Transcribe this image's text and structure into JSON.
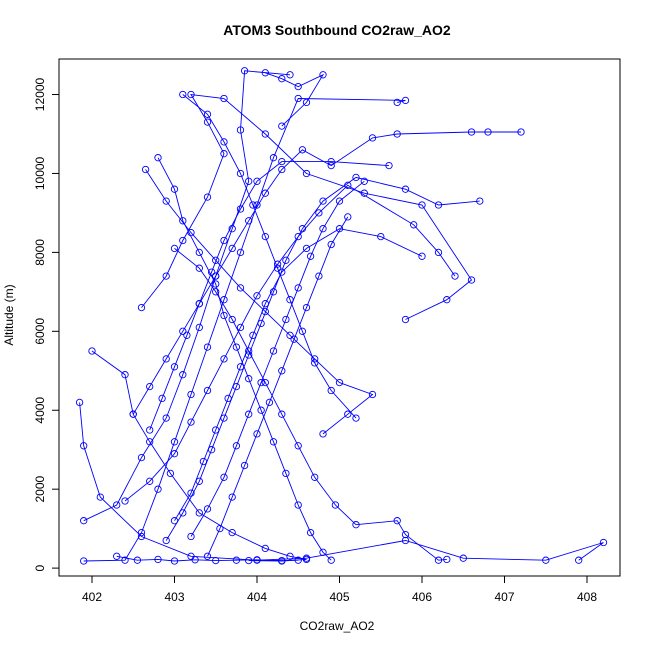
{
  "chart_data": {
    "type": "line",
    "title": "ATOM3 Southbound CO2raw_AO2",
    "xlabel": "CO2raw_AO2",
    "ylabel": "Altitude (m)",
    "xlim": [
      401.6,
      408.4
    ],
    "ylim": [
      -200,
      12900
    ],
    "x_ticks": [
      "402",
      "403",
      "404",
      "405",
      "406",
      "407",
      "408"
    ],
    "y_ticks": [
      "0",
      "2000",
      "4000",
      "6000",
      "8000",
      "10000",
      "12000"
    ],
    "grid": false,
    "legend": "none",
    "series_color": "#0000ff",
    "marker": "open-circle",
    "series": [
      {
        "values": [
          [
            401.9,
            180
          ],
          [
            402.4,
            200
          ],
          [
            402.6,
            900
          ],
          [
            402.8,
            2000
          ],
          [
            403.0,
            3200
          ],
          [
            403.2,
            4400
          ],
          [
            403.4,
            5600
          ],
          [
            403.6,
            6800
          ],
          [
            403.8,
            8000
          ],
          [
            404.0,
            9200
          ],
          [
            404.2,
            10400
          ],
          [
            404.5,
            11900
          ],
          [
            405.8,
            11850
          ],
          [
            405.7,
            11800
          ]
        ]
      },
      {
        "values": [
          [
            401.9,
            1200
          ],
          [
            402.3,
            1600
          ],
          [
            402.6,
            2800
          ],
          [
            402.9,
            3800
          ],
          [
            403.1,
            4900
          ],
          [
            403.3,
            6100
          ],
          [
            403.5,
            7400
          ],
          [
            403.7,
            8600
          ],
          [
            403.9,
            9800
          ],
          [
            403.8,
            11100
          ],
          [
            403.85,
            12600
          ],
          [
            404.4,
            12500
          ]
        ]
      },
      {
        "values": [
          [
            401.85,
            4200
          ],
          [
            401.9,
            3100
          ],
          [
            402.1,
            1800
          ],
          [
            402.6,
            800
          ],
          [
            403.2,
            300
          ],
          [
            404.0,
            200
          ],
          [
            404.6,
            250
          ],
          [
            405.8,
            700
          ],
          [
            406.5,
            250
          ],
          [
            407.5,
            200
          ],
          [
            408.2,
            650
          ],
          [
            407.9,
            200
          ]
        ]
      },
      {
        "values": [
          [
            402.0,
            5500
          ],
          [
            402.4,
            4900
          ],
          [
            402.5,
            3900
          ],
          [
            402.7,
            3200
          ],
          [
            402.95,
            2400
          ],
          [
            403.3,
            1400
          ],
          [
            403.7,
            900
          ],
          [
            404.1,
            500
          ],
          [
            404.4,
            300
          ],
          [
            404.6,
            220
          ],
          [
            404.3,
            180
          ],
          [
            403.9,
            190
          ]
        ]
      },
      {
        "values": [
          [
            402.6,
            6600
          ],
          [
            402.9,
            7400
          ],
          [
            403.1,
            8300
          ],
          [
            403.4,
            9400
          ],
          [
            403.6,
            10500
          ],
          [
            403.4,
            11300
          ],
          [
            403.2,
            12000
          ],
          [
            403.6,
            11900
          ],
          [
            404.1,
            11000
          ],
          [
            404.6,
            10000
          ],
          [
            405.3,
            9500
          ],
          [
            406.0,
            9200
          ],
          [
            406.6,
            7300
          ],
          [
            406.3,
            6800
          ],
          [
            405.8,
            6300
          ]
        ]
      },
      {
        "values": [
          [
            402.8,
            10400
          ],
          [
            403.0,
            9600
          ],
          [
            403.1,
            8800
          ],
          [
            403.3,
            8000
          ],
          [
            403.5,
            7200
          ],
          [
            403.6,
            6400
          ],
          [
            403.75,
            5600
          ],
          [
            403.9,
            4800
          ],
          [
            404.05,
            4000
          ],
          [
            404.2,
            3200
          ],
          [
            404.35,
            2400
          ],
          [
            404.5,
            1600
          ],
          [
            404.65,
            900
          ],
          [
            404.8,
            400
          ],
          [
            404.9,
            200
          ]
        ]
      },
      {
        "values": [
          [
            402.65,
            10100
          ],
          [
            402.9,
            9300
          ],
          [
            403.2,
            8500
          ],
          [
            403.5,
            7800
          ],
          [
            403.8,
            7100
          ],
          [
            404.1,
            6500
          ],
          [
            404.4,
            5900
          ],
          [
            404.7,
            5300
          ],
          [
            405.0,
            4700
          ],
          [
            405.4,
            4400
          ],
          [
            405.1,
            3900
          ],
          [
            404.8,
            3400
          ]
        ]
      },
      {
        "values": [
          [
            403.0,
            8100
          ],
          [
            403.3,
            7600
          ],
          [
            403.5,
            7000
          ],
          [
            403.7,
            6300
          ],
          [
            403.9,
            5500
          ],
          [
            404.1,
            4700
          ],
          [
            404.3,
            3900
          ],
          [
            404.5,
            3100
          ],
          [
            404.7,
            2300
          ],
          [
            404.95,
            1600
          ],
          [
            405.2,
            1100
          ],
          [
            405.7,
            1200
          ],
          [
            405.8,
            850
          ],
          [
            406.2,
            200
          ],
          [
            406.3,
            220
          ]
        ]
      },
      {
        "values": [
          [
            402.5,
            3900
          ],
          [
            402.7,
            4600
          ],
          [
            402.9,
            5300
          ],
          [
            403.1,
            6000
          ],
          [
            403.3,
            6700
          ],
          [
            403.5,
            7400
          ],
          [
            403.7,
            8100
          ],
          [
            403.9,
            8800
          ],
          [
            404.1,
            9500
          ],
          [
            404.3,
            10100
          ],
          [
            404.55,
            10600
          ],
          [
            404.9,
            10200
          ],
          [
            405.4,
            10900
          ],
          [
            405.7,
            11000
          ],
          [
            406.6,
            11050
          ],
          [
            406.8,
            11050
          ],
          [
            407.2,
            11050
          ]
        ]
      },
      {
        "values": [
          [
            402.4,
            1700
          ],
          [
            402.7,
            2200
          ],
          [
            403.0,
            2900
          ],
          [
            403.2,
            3700
          ],
          [
            403.4,
            4500
          ],
          [
            403.6,
            5300
          ],
          [
            403.8,
            6100
          ],
          [
            404.0,
            6900
          ],
          [
            404.25,
            7700
          ],
          [
            404.5,
            8400
          ],
          [
            404.75,
            9000
          ],
          [
            405.1,
            9700
          ],
          [
            405.9,
            8700
          ],
          [
            406.2,
            8000
          ],
          [
            406.4,
            7400
          ]
        ]
      },
      {
        "values": [
          [
            402.9,
            700
          ],
          [
            403.1,
            1400
          ],
          [
            403.3,
            2200
          ],
          [
            403.45,
            3000
          ],
          [
            403.6,
            3800
          ],
          [
            403.75,
            4600
          ],
          [
            403.9,
            5400
          ],
          [
            404.05,
            6200
          ],
          [
            404.2,
            7000
          ],
          [
            404.35,
            7800
          ],
          [
            404.55,
            8600
          ],
          [
            404.8,
            9300
          ],
          [
            405.2,
            9900
          ],
          [
            405.8,
            9600
          ],
          [
            406.2,
            9200
          ],
          [
            406.7,
            9300
          ]
        ]
      },
      {
        "values": [
          [
            403.4,
            300
          ],
          [
            403.55,
            1000
          ],
          [
            403.7,
            1800
          ],
          [
            403.85,
            2600
          ],
          [
            404.0,
            3400
          ],
          [
            404.15,
            4200
          ],
          [
            404.3,
            5000
          ],
          [
            404.45,
            5800
          ],
          [
            404.6,
            6600
          ],
          [
            404.75,
            7400
          ],
          [
            404.9,
            8200
          ],
          [
            405.1,
            8900
          ]
        ]
      },
      {
        "values": [
          [
            402.3,
            300
          ],
          [
            402.55,
            200
          ],
          [
            402.8,
            220
          ],
          [
            403.0,
            180
          ],
          [
            403.25,
            210
          ],
          [
            403.5,
            190
          ],
          [
            403.75,
            200
          ],
          [
            404.0,
            210
          ],
          [
            404.3,
            190
          ],
          [
            404.5,
            200
          ]
        ]
      },
      {
        "values": [
          [
            403.0,
            1200
          ],
          [
            403.2,
            1900
          ],
          [
            403.35,
            2700
          ],
          [
            403.5,
            3500
          ],
          [
            403.65,
            4300
          ],
          [
            403.8,
            5100
          ],
          [
            403.95,
            5900
          ],
          [
            404.1,
            6700
          ],
          [
            404.3,
            7500
          ],
          [
            404.6,
            8100
          ],
          [
            405.0,
            8600
          ],
          [
            405.5,
            8400
          ],
          [
            406.0,
            7900
          ]
        ]
      },
      {
        "values": [
          [
            402.7,
            3500
          ],
          [
            402.85,
            4300
          ],
          [
            403.0,
            5100
          ],
          [
            403.15,
            5900
          ],
          [
            403.3,
            6700
          ],
          [
            403.45,
            7500
          ],
          [
            403.6,
            8300
          ],
          [
            403.8,
            9100
          ],
          [
            404.0,
            9800
          ],
          [
            404.3,
            10300
          ],
          [
            404.9,
            10300
          ],
          [
            405.6,
            10200
          ]
        ]
      },
      {
        "values": [
          [
            403.2,
            800
          ],
          [
            403.4,
            1500
          ],
          [
            403.6,
            2300
          ],
          [
            403.75,
            3100
          ],
          [
            403.9,
            3900
          ],
          [
            404.05,
            4700
          ],
          [
            404.2,
            5500
          ],
          [
            404.35,
            6300
          ],
          [
            404.5,
            7100
          ],
          [
            404.65,
            7900
          ],
          [
            404.8,
            8600
          ],
          [
            405.0,
            9300
          ],
          [
            405.3,
            9800
          ]
        ]
      },
      {
        "values": [
          [
            403.1,
            12000
          ],
          [
            403.4,
            11500
          ],
          [
            403.6,
            10800
          ],
          [
            403.8,
            10000
          ],
          [
            403.95,
            9200
          ],
          [
            404.1,
            8400
          ],
          [
            404.25,
            7600
          ],
          [
            404.4,
            6800
          ],
          [
            404.55,
            6000
          ],
          [
            404.7,
            5200
          ],
          [
            404.9,
            4500
          ],
          [
            405.2,
            3800
          ]
        ]
      },
      {
        "values": [
          [
            404.1,
            12550
          ],
          [
            404.3,
            12400
          ],
          [
            404.5,
            12200
          ],
          [
            404.8,
            12500
          ],
          [
            404.6,
            11800
          ],
          [
            404.3,
            11200
          ]
        ]
      }
    ]
  }
}
